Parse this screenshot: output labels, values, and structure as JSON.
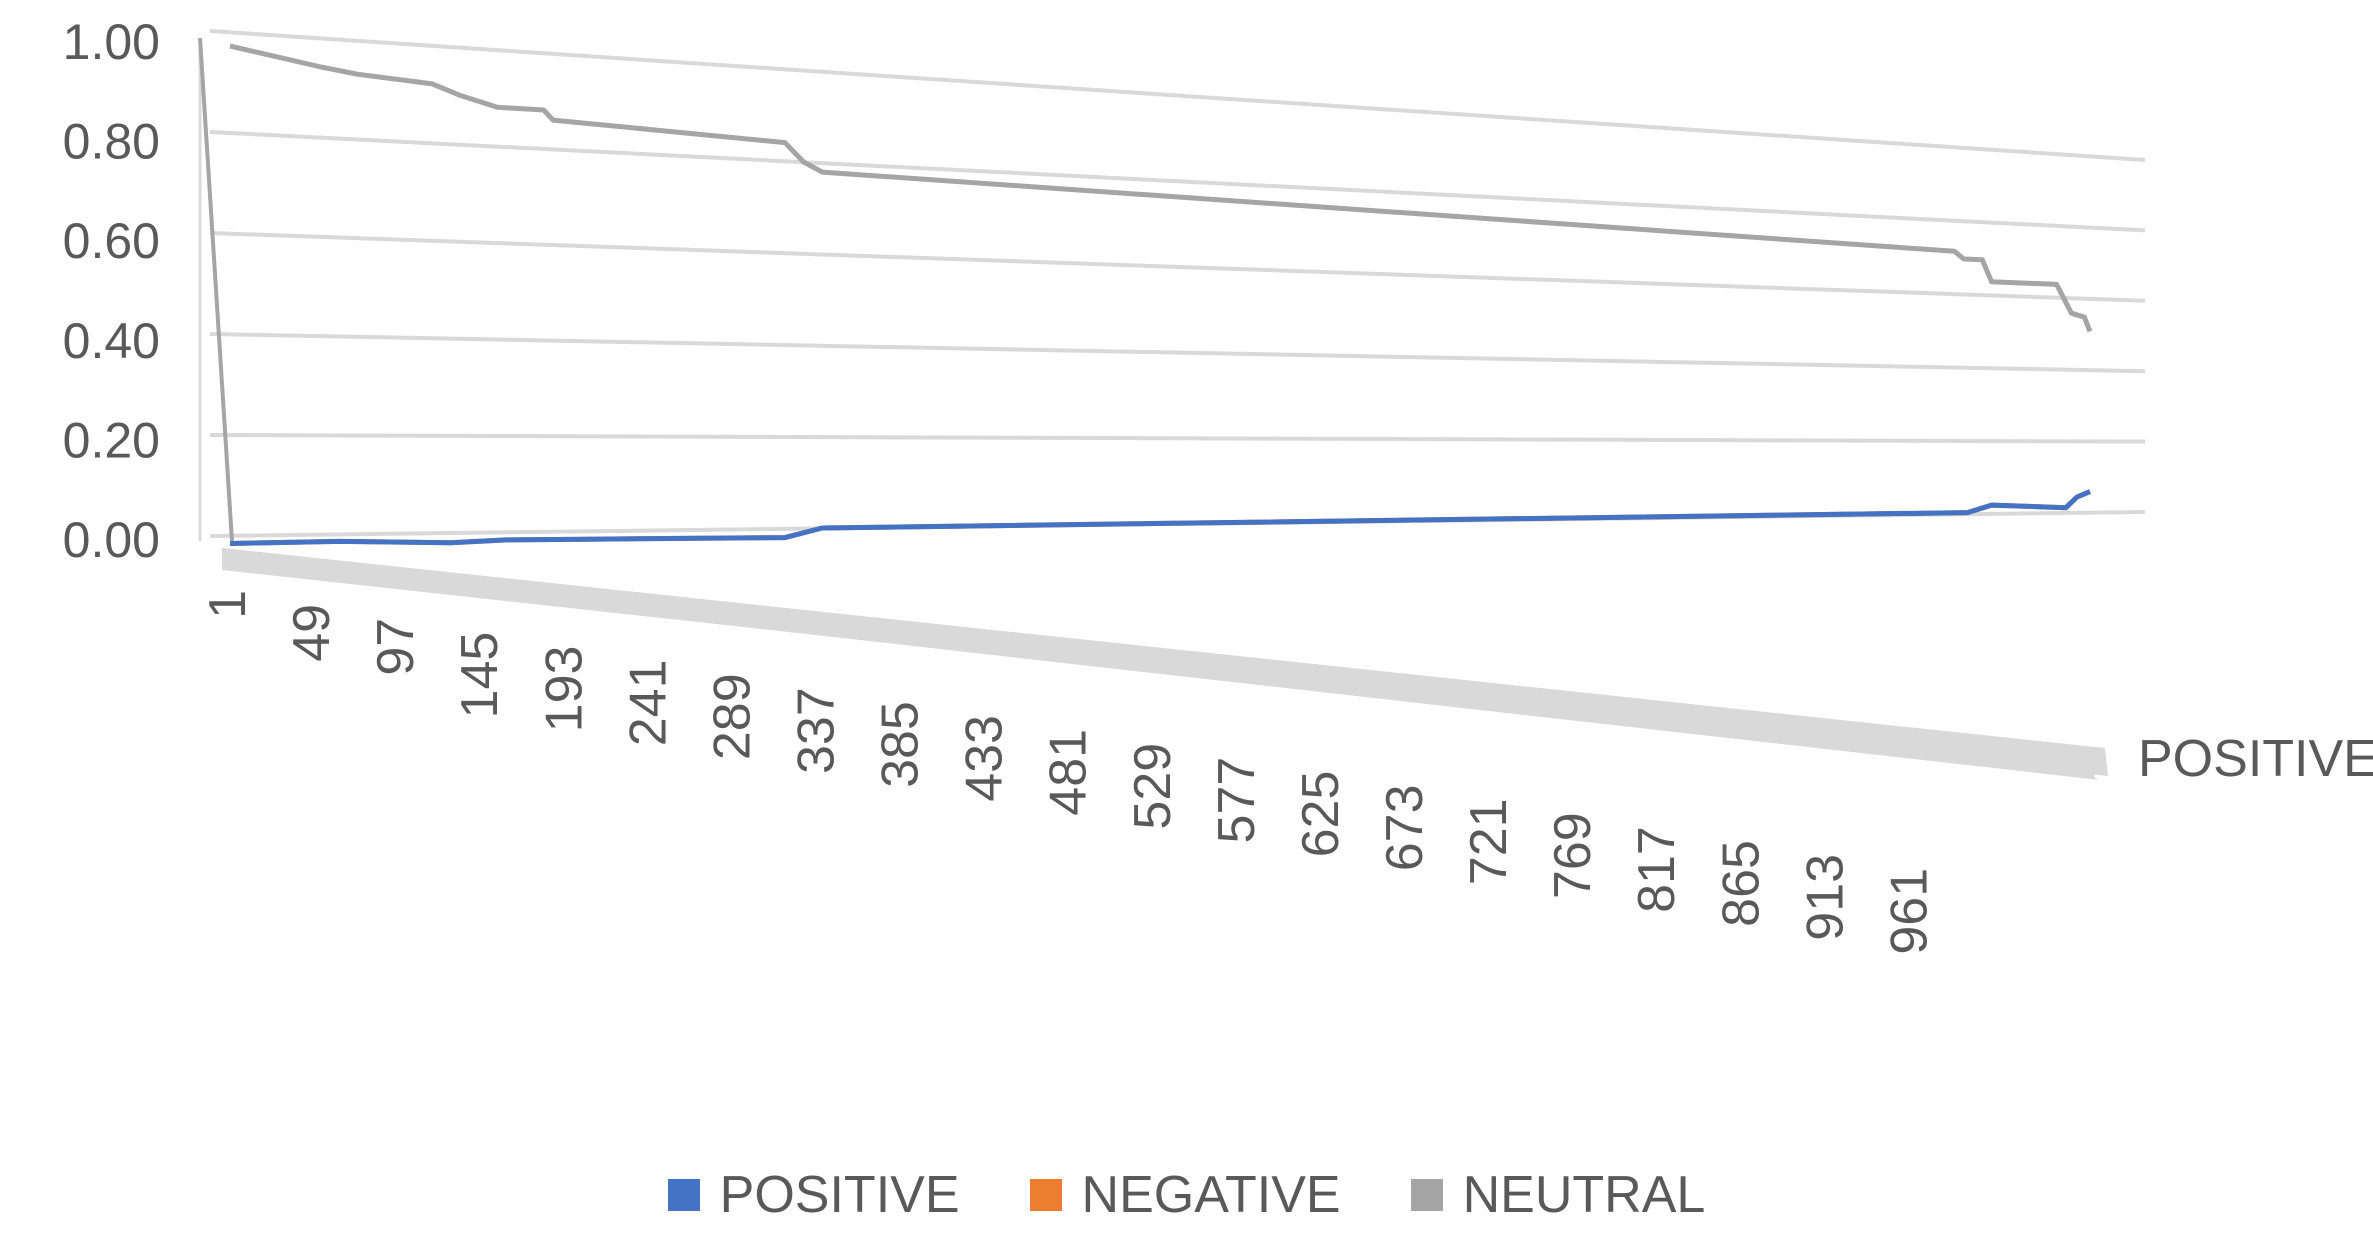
{
  "chart_data": {
    "type": "line",
    "style": "3d",
    "ylim": [
      0,
      1
    ],
    "y_ticks": [
      "1.00",
      "0.80",
      "0.60",
      "0.40",
      "0.20",
      "0.00"
    ],
    "x_ticks": [
      "1",
      "49",
      "97",
      "145",
      "193",
      "241",
      "289",
      "337",
      "385",
      "433",
      "481",
      "529",
      "577",
      "625",
      "673",
      "721",
      "769",
      "817",
      "865",
      "913",
      "961"
    ],
    "x_max": 1003,
    "depth_axis_label": "POSITIVE",
    "grid": true,
    "legend_position": "bottom",
    "series": [
      {
        "name": "POSITIVE",
        "color": "#4472C4",
        "points": [
          [
            1,
            0.005
          ],
          [
            60,
            0.006
          ],
          [
            120,
            0.0
          ],
          [
            150,
            0.004
          ],
          [
            193,
            0.003
          ],
          [
            300,
            0.0
          ],
          [
            320,
            0.02
          ],
          [
            937,
            0.02
          ],
          [
            950,
            0.04
          ],
          [
            990,
            0.03
          ],
          [
            996,
            0.06
          ],
          [
            1003,
            0.075
          ]
        ]
      },
      {
        "name": "NEGATIVE",
        "color": "#ED7D31",
        "points": [
          [
            1,
            0.005
          ],
          [
            60,
            0.006
          ],
          [
            120,
            0.0
          ],
          [
            150,
            0.004
          ],
          [
            193,
            0.003
          ],
          [
            300,
            0.0
          ],
          [
            320,
            0.02
          ],
          [
            937,
            0.02
          ],
          [
            950,
            0.04
          ],
          [
            990,
            0.03
          ],
          [
            996,
            0.06
          ],
          [
            1003,
            0.075
          ]
        ]
      },
      {
        "name": "NEUTRAL",
        "color": "#A5A5A5",
        "points": [
          [
            1,
            0.99
          ],
          [
            50,
            0.96
          ],
          [
            70,
            0.95
          ],
          [
            110,
            0.94
          ],
          [
            125,
            0.92
          ],
          [
            145,
            0.9
          ],
          [
            170,
            0.9
          ],
          [
            175,
            0.88
          ],
          [
            300,
            0.86
          ],
          [
            310,
            0.82
          ],
          [
            320,
            0.8
          ],
          [
            930,
            0.74
          ],
          [
            935,
            0.72
          ],
          [
            945,
            0.72
          ],
          [
            950,
            0.66
          ],
          [
            985,
            0.66
          ],
          [
            993,
            0.58
          ],
          [
            1000,
            0.57
          ],
          [
            1003,
            0.53
          ]
        ]
      }
    ]
  }
}
